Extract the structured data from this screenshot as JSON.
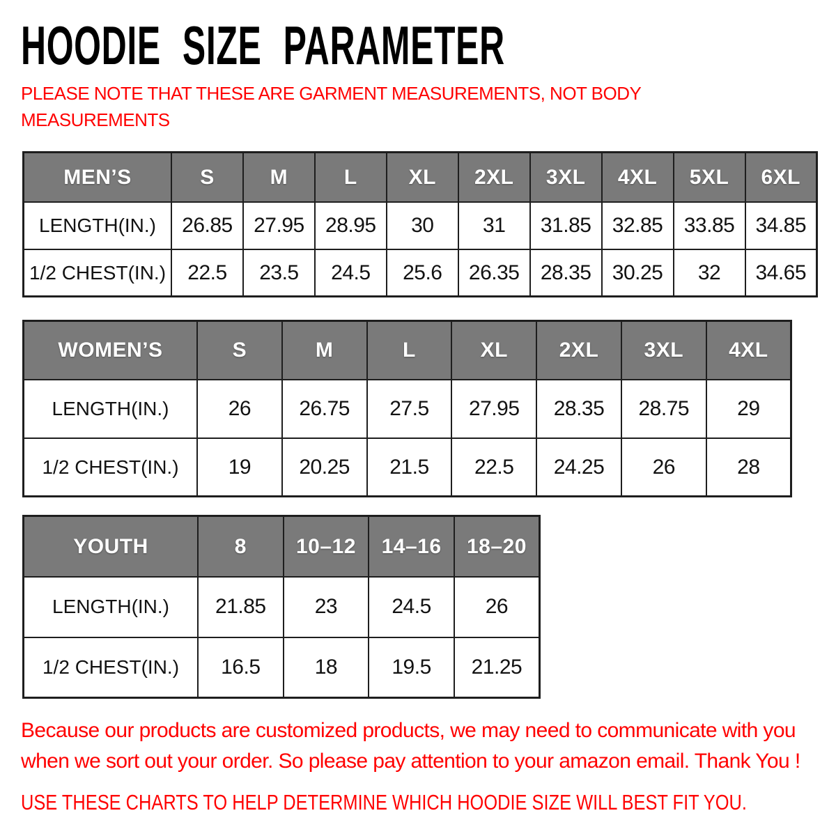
{
  "title": "HOODIE SIZE PARAMETER",
  "note": "PLEASE NOTE THAT THESE ARE GARMENT MEASUREMENTS, NOT BODY MEASUREMENTS",
  "colors": {
    "accent_red": "#ff0000",
    "table_header_gray": "#7a7a7a",
    "table_border": "#1e1e1e",
    "title_black": "#000000"
  },
  "tables": [
    {
      "id": "mens",
      "header": "MEN’S",
      "sizes": [
        "S",
        "M",
        "L",
        "XL",
        "2XL",
        "3XL",
        "4XL",
        "5XL",
        "6XL"
      ],
      "rows": [
        {
          "label": "LENGTH(IN.)",
          "values": [
            "26.85",
            "27.95",
            "28.95",
            "30",
            "31",
            "31.85",
            "32.85",
            "33.85",
            "34.85"
          ]
        },
        {
          "label": "1/2 CHEST(IN.)",
          "values": [
            "22.5",
            "23.5",
            "24.5",
            "25.6",
            "26.35",
            "28.35",
            "30.25",
            "32",
            "34.65"
          ]
        }
      ]
    },
    {
      "id": "womens",
      "header": "WOMEN’S",
      "sizes": [
        "S",
        "M",
        "L",
        "XL",
        "2XL",
        "3XL",
        "4XL"
      ],
      "rows": [
        {
          "label": "LENGTH(IN.)",
          "values": [
            "26",
            "26.75",
            "27.5",
            "27.95",
            "28.35",
            "28.75",
            "29"
          ]
        },
        {
          "label": "1/2 CHEST(IN.)",
          "values": [
            "19",
            "20.25",
            "21.5",
            "22.5",
            "24.25",
            "26",
            "28"
          ]
        }
      ]
    },
    {
      "id": "youth",
      "header": "YOUTH",
      "sizes": [
        "8",
        "10–12",
        "14–16",
        "18–20"
      ],
      "rows": [
        {
          "label": "LENGTH(IN.)",
          "values": [
            "21.85",
            "23",
            "24.5",
            "26"
          ]
        },
        {
          "label": "1/2 CHEST(IN.)",
          "values": [
            "16.5",
            "18",
            "19.5",
            "21.25"
          ]
        }
      ]
    }
  ],
  "footer": {
    "notice": "Because our products are customized products, we may need to communicate with you when we sort out your order. So please pay attention to your amazon email. Thank You !",
    "advice": "USE THESE CHARTS TO HELP DETERMINE WHICH HOODIE SIZE WILL BEST FIT YOU."
  }
}
